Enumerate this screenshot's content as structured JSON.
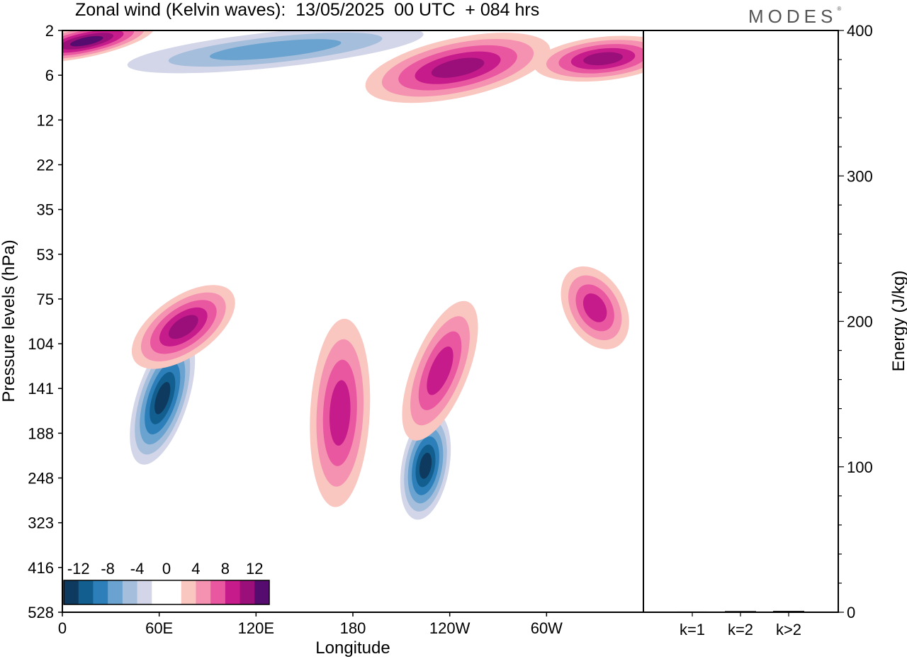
{
  "chart_data": [
    {
      "type": "heatmap",
      "title": "Zonal wind (Kelvin waves):  13/05/2025  00 UTC  + 084 hrs",
      "xlabel": "Longitude",
      "ylabel": "Pressure levels (hPa)",
      "x_ticks": [
        "0",
        "60E",
        "120E",
        "180",
        "120W",
        "60W"
      ],
      "x_range": [
        0,
        360
      ],
      "y_ticks": [
        "2",
        "6",
        "12",
        "22",
        "35",
        "53",
        "75",
        "104",
        "141",
        "188",
        "248",
        "323",
        "416",
        "528"
      ],
      "y_scale": "log",
      "colorbar": {
        "labels": [
          "-12",
          "-8",
          "-4",
          "0",
          "4",
          "8",
          "12"
        ],
        "colors": [
          "#0d3a5e",
          "#125f8f",
          "#2d7fb9",
          "#6aa3cf",
          "#a5bedc",
          "#d3d6e8",
          "#ffffff",
          "#ffffff",
          "#f9c6c0",
          "#f592b1",
          "#ea57a1",
          "#c61b8a",
          "#9a0f79",
          "#560b6e"
        ]
      },
      "features": [
        {
          "lon": 62,
          "p": 150,
          "value": -14
        },
        {
          "lon": 75,
          "p": 92,
          "value": 10
        },
        {
          "lon": 225,
          "p": 230,
          "value": -13
        },
        {
          "lon": 234,
          "p": 125,
          "value": 8
        },
        {
          "lon": 172,
          "p": 165,
          "value": 8
        },
        {
          "lon": 15,
          "p": 2.6,
          "value": 12
        },
        {
          "lon": 245,
          "p": 5,
          "value": 10
        },
        {
          "lon": 335,
          "p": 4,
          "value": 10
        },
        {
          "lon": 132,
          "p": 3.2,
          "value": -8
        },
        {
          "lon": 330,
          "p": 80,
          "value": 8
        }
      ],
      "grid": false
    },
    {
      "type": "bar",
      "categories": [
        "k=1",
        "k=2",
        "k>2"
      ],
      "values": [
        0.5,
        0.8,
        0.9
      ],
      "ylabel": "Energy (J/kg)",
      "y_ticks": [
        "0",
        "100",
        "200",
        "300",
        "400"
      ],
      "ylim": [
        0,
        400
      ]
    }
  ],
  "brand": "MODES",
  "brand_mark": "®"
}
